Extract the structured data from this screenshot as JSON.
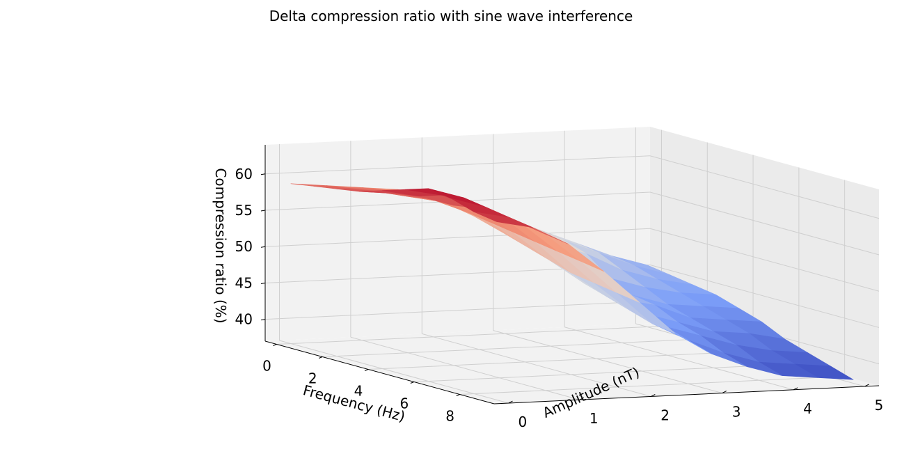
{
  "chart_data": {
    "type": "surface3d",
    "title": "Delta compression ratio with sine wave interference",
    "xlabel": "Frequency (Hz)",
    "ylabel": "Amplitude (nT)",
    "zlabel": "Compression ratio (%)",
    "x_ticks": [
      "0",
      "2",
      "4",
      "6",
      "8"
    ],
    "y_ticks": [
      "0",
      "1",
      "2",
      "3",
      "4",
      "5"
    ],
    "z_ticks": [
      "40",
      "45",
      "50",
      "55",
      "60"
    ],
    "xlim": [
      -0.5,
      9.5
    ],
    "ylim": [
      -0.2,
      5.2
    ],
    "zlim": [
      37,
      64
    ],
    "colormap": "coolwarm",
    "grid": true,
    "frequency": [
      0,
      1,
      2,
      3,
      4,
      5,
      6,
      7,
      8,
      9
    ],
    "amplitude": [
      0,
      0.5,
      1,
      1.5,
      2,
      2.5,
      3,
      3.5,
      4,
      4.5,
      5
    ],
    "compression_ratio": [
      [
        59.0,
        59.5,
        60.0,
        60.5,
        61.5,
        62.5,
        63.5,
        63.0,
        62.0,
        61.5
      ],
      [
        58.5,
        59.0,
        59.5,
        60.0,
        60.5,
        61.5,
        62.0,
        61.5,
        61.0,
        60.5
      ],
      [
        58.0,
        58.5,
        58.5,
        59.0,
        59.0,
        59.5,
        59.5,
        59.0,
        58.5,
        58.0
      ],
      [
        57.5,
        57.5,
        57.5,
        57.0,
        56.5,
        56.0,
        55.5,
        55.0,
        54.5,
        54.0
      ],
      [
        56.5,
        56.0,
        55.0,
        54.0,
        53.0,
        52.0,
        51.0,
        50.5,
        50.0,
        49.5
      ],
      [
        55.0,
        54.5,
        53.0,
        51.5,
        50.0,
        48.5,
        47.5,
        46.5,
        45.5,
        45.0
      ],
      [
        53.0,
        52.5,
        51.0,
        49.0,
        48.0,
        46.0,
        45.0,
        44.0,
        43.0,
        42.0
      ],
      [
        51.0,
        50.5,
        49.5,
        47.0,
        45.5,
        45.0,
        43.5,
        42.5,
        41.0,
        40.0
      ],
      [
        49.0,
        48.5,
        47.0,
        45.5,
        44.0,
        43.0,
        42.0,
        41.0,
        39.5,
        38.5
      ],
      [
        47.0,
        46.5,
        45.5,
        44.5,
        43.5,
        42.5,
        41.5,
        40.0,
        39.0,
        38.0
      ],
      [
        45.5,
        45.0,
        44.5,
        44.0,
        43.0,
        42.0,
        40.5,
        39.5,
        38.5,
        37.5
      ]
    ]
  }
}
